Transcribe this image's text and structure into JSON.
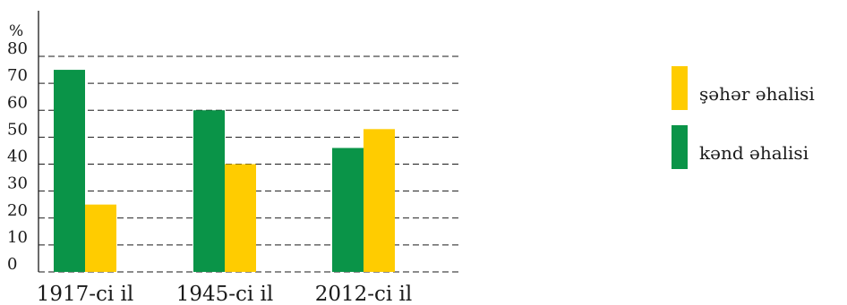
{
  "chart_data": {
    "type": "bar",
    "ylabel": "%",
    "ylim": [
      0,
      80
    ],
    "yticks": [
      "0",
      "10",
      "20",
      "30",
      "40",
      "50",
      "60",
      "70",
      "80"
    ],
    "categories": [
      "1917-ci il",
      "1945-ci il",
      "2012-ci il"
    ],
    "series": [
      {
        "name": "kənd əhalisi",
        "values": [
          75,
          60,
          46
        ],
        "color": "#0a9448"
      },
      {
        "name": "şəhər əhalisi",
        "values": [
          25,
          40,
          53
        ],
        "color": "#ffcc00"
      }
    ],
    "grid": "dashed horizontal lines at each tick",
    "legend": "right"
  }
}
